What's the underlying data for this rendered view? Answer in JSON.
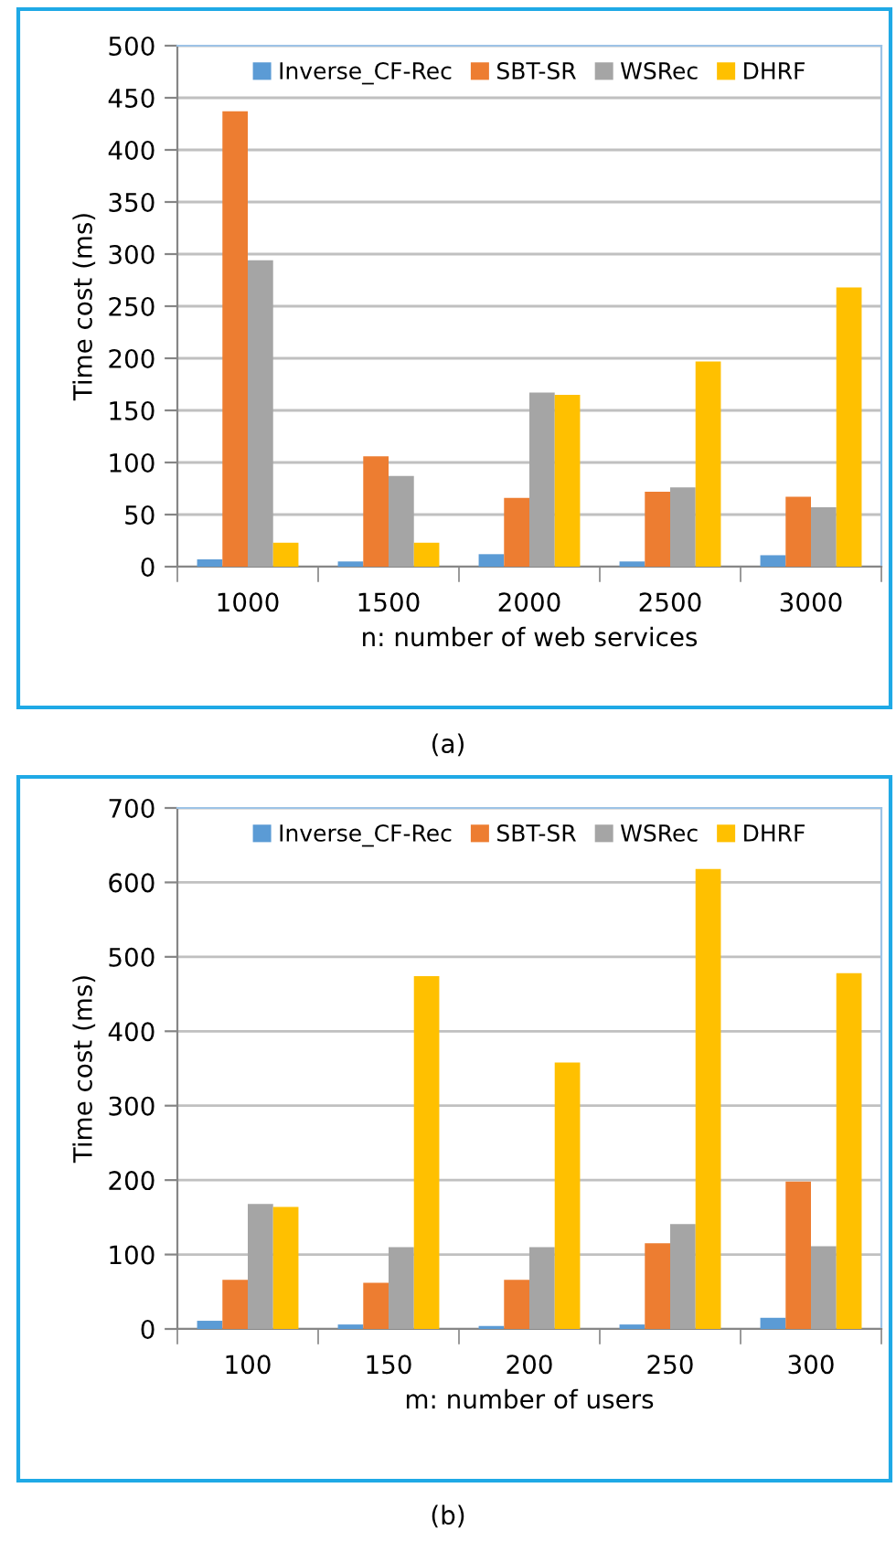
{
  "chart_data": [
    {
      "type": "bar",
      "xlabel": "n: number of web services",
      "ylabel": "Time cost (ms)",
      "categories": [
        "1000",
        "1500",
        "2000",
        "2500",
        "3000"
      ],
      "series": [
        {
          "name": "Inverse_CF-Rec",
          "color": "#5b9bd5",
          "values": [
            7,
            5,
            12,
            5,
            11
          ]
        },
        {
          "name": "SBT-SR",
          "color": "#ed7d31",
          "values": [
            437,
            106,
            66,
            72,
            67
          ]
        },
        {
          "name": "WSRec",
          "color": "#a5a5a5",
          "values": [
            294,
            87,
            167,
            76,
            57
          ]
        },
        {
          "name": "DHRF",
          "color": "#ffc000",
          "values": [
            23,
            23,
            165,
            197,
            268
          ]
        }
      ],
      "ylim": [
        0,
        500
      ],
      "yticks": [
        0,
        50,
        100,
        150,
        200,
        250,
        300,
        350,
        400,
        450,
        500
      ],
      "grid": "y",
      "legend": "top",
      "annotations": [
        "(a)"
      ]
    },
    {
      "type": "bar",
      "xlabel": "m: number of users",
      "ylabel": "Time cost (ms)",
      "categories": [
        "100",
        "150",
        "200",
        "250",
        "300"
      ],
      "series": [
        {
          "name": "Inverse_CF-Rec",
          "color": "#5b9bd5",
          "values": [
            11,
            6,
            4,
            6,
            15
          ]
        },
        {
          "name": "SBT-SR",
          "color": "#ed7d31",
          "values": [
            66,
            62,
            66,
            115,
            198
          ]
        },
        {
          "name": "WSRec",
          "color": "#a5a5a5",
          "values": [
            168,
            110,
            110,
            141,
            111
          ]
        },
        {
          "name": "DHRF",
          "color": "#ffc000",
          "values": [
            164,
            474,
            358,
            618,
            478
          ]
        }
      ],
      "ylim": [
        0,
        700
      ],
      "yticks": [
        0,
        100,
        200,
        300,
        400,
        500,
        600,
        700
      ],
      "grid": "y",
      "legend": "top",
      "annotations": [
        "(b)"
      ]
    }
  ]
}
